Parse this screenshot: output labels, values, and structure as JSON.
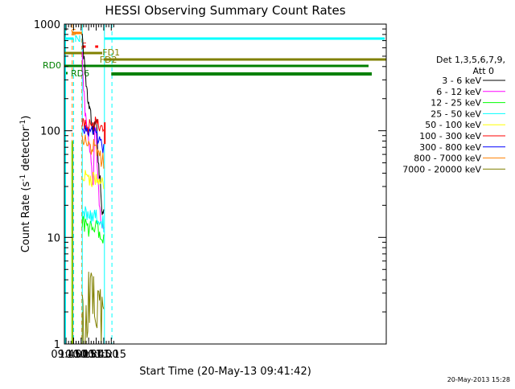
{
  "chart_data": {
    "type": "line",
    "title": "HESSI Observing Summary Count Rates",
    "xlabel": "Start Time (20-May-13 09:41:42)",
    "ylabel": "Count Rate (s⁻¹ detector⁻¹)",
    "ylabel_main": "Count Rate (s",
    "ylabel_sup1": "-1",
    "ylabel_mid": " detector",
    "ylabel_sup2": "-1",
    "ylabel_end": ")",
    "yscale": "log",
    "ylim": [
      1,
      1000
    ],
    "xlim_min": [
      581.7,
      1222
    ],
    "x_ticks": [
      {
        "min": 585,
        "label": "09:45"
      },
      {
        "min": 600,
        "label": "10:00"
      },
      {
        "min": 615,
        "label": "10:15"
      },
      {
        "min": 630,
        "label": "10:30"
      },
      {
        "min": 645,
        "label": "10:45"
      },
      {
        "min": 660,
        "label": "11:00"
      },
      {
        "min": 675,
        "label": "11:15"
      }
    ],
    "y_ticks": [
      {
        "value": 1,
        "label": "1"
      },
      {
        "value": 10,
        "label": "10"
      },
      {
        "value": 100,
        "label": "100"
      },
      {
        "value": 1000,
        "label": "1000"
      }
    ],
    "legend": {
      "placement": "right",
      "title_line1": "Det 1,3,5,6,7,9,",
      "title_line2": "Att 0"
    },
    "series": [
      {
        "name": "3 - 6 keV",
        "color": "#000000",
        "x": [
          617.3,
          618,
          619,
          620,
          621,
          622,
          623,
          624,
          625,
          626,
          627,
          628,
          629,
          630,
          631,
          632,
          633,
          634,
          635,
          636,
          637,
          638,
          639,
          640,
          641,
          642,
          643,
          644,
          645,
          646,
          647,
          648,
          649,
          650,
          651,
          652,
          653,
          654,
          655,
          656,
          657,
          658,
          659,
          660
        ],
        "y": [
          900,
          700,
          600,
          520,
          450,
          390,
          340,
          300,
          270,
          240,
          220,
          200,
          185,
          175,
          165,
          160,
          150,
          140,
          130,
          120,
          115,
          110,
          105,
          100,
          110,
          115,
          120,
          125,
          130,
          120,
          80,
          60,
          52,
          45,
          40,
          35,
          35,
          30,
          25,
          20,
          17,
          16,
          16,
          17
        ]
      },
      {
        "name": "6 - 12 keV",
        "color": "#ff00ff",
        "x": [
          617.3,
          618,
          619,
          620,
          621,
          622,
          623,
          624,
          625,
          626,
          627,
          628,
          629,
          630,
          631,
          632,
          633,
          634,
          635,
          636,
          637,
          638,
          639,
          640,
          641,
          642,
          643,
          644,
          645,
          646,
          647,
          648,
          649,
          650,
          651,
          652,
          653,
          654,
          655,
          656,
          657,
          658,
          659,
          660
        ],
        "y": [
          600,
          420,
          330,
          260,
          210,
          175,
          150,
          135,
          125,
          110,
          100,
          92,
          85,
          78,
          72,
          66,
          60,
          55,
          50,
          45,
          40,
          36,
          33,
          45,
          70,
          95,
          105,
          100,
          90,
          60,
          45,
          38,
          32,
          26,
          22,
          19,
          17,
          16,
          15,
          14,
          13,
          13,
          12,
          12
        ]
      },
      {
        "name": "12 - 25 keV",
        "color": "#00ff00",
        "x": [
          617.3,
          620,
          625,
          630,
          635,
          640,
          645,
          650,
          655,
          660
        ],
        "y": [
          14,
          13,
          12.5,
          12,
          12.5,
          13.5,
          12.5,
          11,
          10,
          9.5
        ]
      },
      {
        "name": "25 - 50 keV",
        "color": "#00ffff",
        "x": [
          617.3,
          620,
          625,
          630,
          635,
          640,
          645,
          650,
          655,
          660
        ],
        "y": [
          17,
          17,
          16.5,
          16,
          16,
          16.5,
          16,
          15,
          14,
          13
        ]
      },
      {
        "name": "50 - 100 keV",
        "color": "#ffff00",
        "x": [
          617.3,
          620,
          625,
          630,
          635,
          640,
          645,
          650,
          655,
          660
        ],
        "y": [
          39,
          38,
          36,
          35,
          34,
          36,
          35,
          33,
          31,
          30
        ]
      },
      {
        "name": "100 - 300 keV",
        "color": "#ff0000",
        "x": [
          617.3,
          620,
          625,
          630,
          635,
          640,
          645,
          650,
          655,
          660
        ],
        "y": [
          115,
          112,
          108,
          105,
          110,
          115,
          112,
          108,
          102,
          98
        ]
      },
      {
        "name": "300 - 800 keV",
        "color": "#0000ff",
        "x": [
          617.3,
          620,
          625,
          630,
          635,
          640,
          645,
          650,
          655,
          660
        ],
        "y": [
          105,
          100,
          96,
          92,
          93,
          95,
          88,
          80,
          72,
          65
        ]
      },
      {
        "name": "800 - 7000 keV",
        "color": "#ff8000",
        "x": [
          617.3,
          620,
          625,
          630,
          635,
          640,
          645,
          650,
          655,
          660
        ],
        "y": [
          90,
          85,
          78,
          72,
          70,
          72,
          68,
          62,
          55,
          50
        ]
      },
      {
        "name": "7000 - 20000 keV",
        "color": "#808000",
        "x": [
          617.3,
          620,
          625,
          630,
          635,
          640,
          645,
          650,
          655,
          660
        ],
        "y": [
          2,
          2,
          2,
          3,
          3.5,
          4,
          3,
          2.5,
          2,
          2
        ]
      }
    ],
    "annotations": [
      {
        "label": "S",
        "color": "#ff8000"
      },
      {
        "label": "N",
        "color": "#00ffff"
      },
      {
        "label": "F",
        "color": "#ff0000"
      },
      {
        "label": "FD1",
        "color": "#808000"
      },
      {
        "label": "FD2",
        "color": "#808000"
      },
      {
        "label": "RD0",
        "color": "#008000"
      },
      {
        "label": "RD6",
        "color": "#008000"
      }
    ],
    "grid": false
  },
  "footer": {
    "timestamp": "20-May-2013 15:28"
  }
}
